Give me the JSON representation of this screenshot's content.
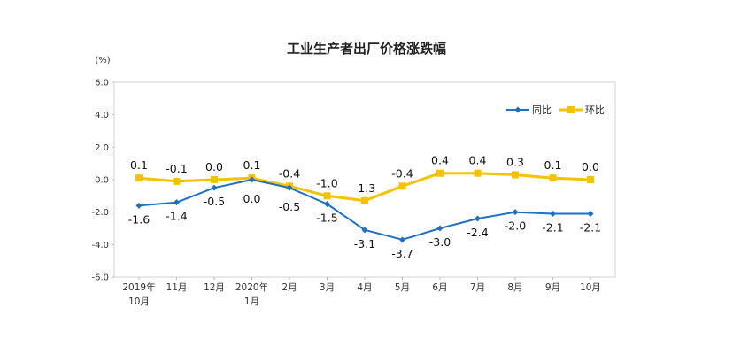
{
  "chart_data": {
    "type": "line",
    "title": "工业生产者出厂价格涨跌幅",
    "unit_label": "(%)",
    "categories": [
      [
        "2019年",
        "10月"
      ],
      [
        "11月"
      ],
      [
        "12月"
      ],
      [
        "2020年",
        "1月"
      ],
      [
        "2月"
      ],
      [
        "3月"
      ],
      [
        "4月"
      ],
      [
        "5月"
      ],
      [
        "6月"
      ],
      [
        "7月"
      ],
      [
        "8月"
      ],
      [
        "9月"
      ],
      [
        "10月"
      ]
    ],
    "y_ticks": [
      "6.0",
      "4.0",
      "2.0",
      "0.0",
      "-2.0",
      "-4.0",
      "-6.0"
    ],
    "ylim": [
      -6,
      6
    ],
    "grid": false,
    "legend_position": "top-right",
    "series": [
      {
        "name": "同比",
        "color": "#1f6fc2",
        "marker": "diamond",
        "values": [
          -1.6,
          -1.4,
          -0.5,
          0.0,
          -0.5,
          -1.5,
          -3.1,
          -3.7,
          -3.0,
          -2.4,
          -2.0,
          -2.1,
          -2.1
        ],
        "labels": [
          "-1.6",
          "-1.4",
          "-0.5",
          "0.0",
          "-0.5",
          "-1.5",
          "-3.1",
          "-3.7",
          "-3.0",
          "-2.4",
          "-2.0",
          "-2.1",
          "-2.1"
        ]
      },
      {
        "name": "环比",
        "color": "#f5c200",
        "marker": "square",
        "values": [
          0.1,
          -0.1,
          0.0,
          0.1,
          -0.4,
          -1.0,
          -1.3,
          -0.4,
          0.4,
          0.4,
          0.3,
          0.1,
          0.0
        ],
        "labels": [
          "0.1",
          "-0.1",
          "0.0",
          "0.1",
          "-0.4",
          "-1.0",
          "-1.3",
          "-0.4",
          "0.4",
          "0.4",
          "0.3",
          "0.1",
          "0.0"
        ]
      }
    ]
  }
}
